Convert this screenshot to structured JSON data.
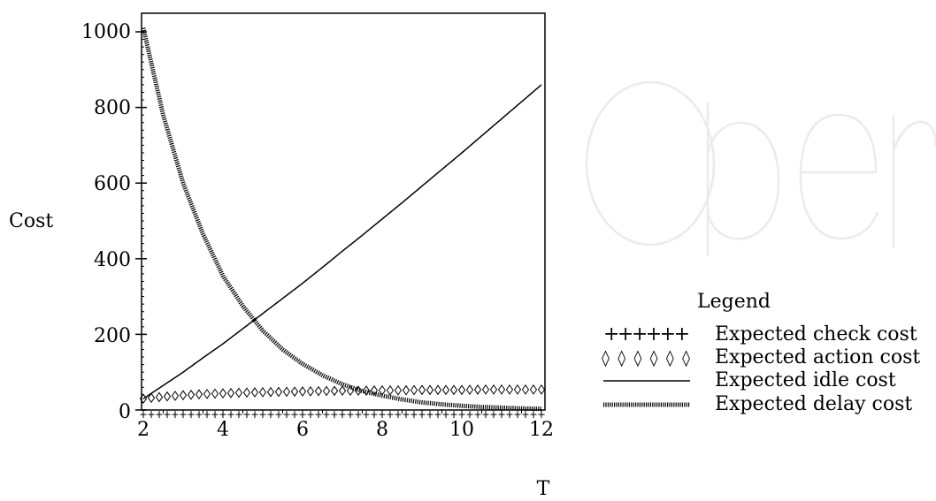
{
  "chart_data": {
    "type": "line",
    "xlabel": "T",
    "ylabel": "Cost",
    "xlim": [
      2,
      12
    ],
    "ylim": [
      0,
      1040
    ],
    "x_ticks": [
      "2",
      "4",
      "6",
      "8",
      "10",
      "12"
    ],
    "y_ticks": [
      "0",
      "200",
      "400",
      "600",
      "800",
      "1000"
    ],
    "x": [
      2,
      2.5,
      3,
      3.5,
      4,
      4.5,
      5,
      5.5,
      6,
      6.5,
      7,
      7.5,
      8,
      8.5,
      9,
      9.5,
      10,
      10.5,
      11,
      11.5,
      12
    ],
    "series": [
      {
        "name": "Expected check cost",
        "style": "plus",
        "values": [
          2,
          2,
          2,
          2,
          2,
          2,
          2,
          2,
          2,
          2,
          2,
          2,
          2,
          2,
          2,
          2,
          2,
          2,
          2,
          2,
          2
        ]
      },
      {
        "name": "Expected action cost",
        "style": "diamond",
        "values": [
          30,
          35,
          39,
          42,
          44,
          46,
          47,
          48,
          49,
          50,
          51,
          51,
          52,
          52,
          53,
          53,
          53,
          54,
          54,
          54,
          54
        ]
      },
      {
        "name": "Expected idle cost",
        "style": "solid",
        "values": [
          30,
          65,
          100,
          138,
          175,
          215,
          255,
          295,
          335,
          377,
          420,
          462,
          505,
          548,
          592,
          636,
          680,
          725,
          770,
          815,
          860
        ]
      },
      {
        "name": "Expected delay cost",
        "style": "dotted",
        "values": [
          1010,
          780,
          600,
          465,
          355,
          275,
          210,
          160,
          122,
          92,
          68,
          50,
          38,
          28,
          20,
          15,
          11,
          8,
          6,
          4,
          3
        ]
      }
    ],
    "legend": {
      "title": "Legend",
      "position": "right"
    },
    "grid": false
  },
  "legend_samples": {
    "check": "++++++",
    "action": "◊◊◊◊◊◊"
  },
  "watermark_text": "Open"
}
